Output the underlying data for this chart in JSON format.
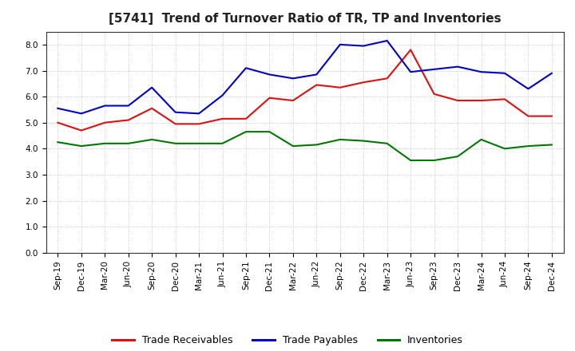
{
  "title": "[5741]  Trend of Turnover Ratio of TR, TP and Inventories",
  "x_labels": [
    "Sep-19",
    "Dec-19",
    "Mar-20",
    "Jun-20",
    "Sep-20",
    "Dec-20",
    "Mar-21",
    "Jun-21",
    "Sep-21",
    "Dec-21",
    "Mar-22",
    "Jun-22",
    "Sep-22",
    "Dec-22",
    "Mar-23",
    "Jun-23",
    "Sep-23",
    "Dec-23",
    "Mar-24",
    "Jun-24",
    "Sep-24",
    "Dec-24"
  ],
  "trade_receivables": [
    5.0,
    4.7,
    5.0,
    5.1,
    5.55,
    4.95,
    4.95,
    5.15,
    5.15,
    5.95,
    5.85,
    6.45,
    6.35,
    6.55,
    6.7,
    7.8,
    6.1,
    5.85,
    5.85,
    5.9,
    5.25,
    5.25
  ],
  "trade_payables": [
    5.55,
    5.35,
    5.65,
    5.65,
    6.35,
    5.4,
    5.35,
    6.05,
    7.1,
    6.85,
    6.7,
    6.85,
    8.0,
    7.95,
    8.15,
    6.95,
    7.05,
    7.15,
    6.95,
    6.9,
    6.3,
    6.9
  ],
  "inventories": [
    4.25,
    4.1,
    4.2,
    4.2,
    4.35,
    4.2,
    4.2,
    4.2,
    4.65,
    4.65,
    4.1,
    4.15,
    4.35,
    4.3,
    4.2,
    3.55,
    3.55,
    3.7,
    4.35,
    4.0,
    4.1,
    4.15
  ],
  "color_tr": "#dd1111",
  "color_tp": "#0000cc",
  "color_inv": "#007700",
  "ylim": [
    0.0,
    8.5
  ],
  "yticks": [
    0.0,
    1.0,
    2.0,
    3.0,
    4.0,
    5.0,
    6.0,
    7.0,
    8.0
  ],
  "legend_tr": "Trade Receivables",
  "legend_tp": "Trade Payables",
  "legend_inv": "Inventories",
  "background_color": "#ffffff",
  "grid_color": "#aaaaaa",
  "title_fontsize": 11,
  "axis_fontsize": 7.5,
  "legend_fontsize": 9
}
